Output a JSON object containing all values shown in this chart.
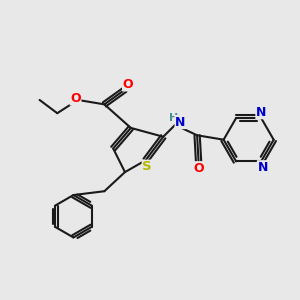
{
  "bg_color": "#e8e8e8",
  "bond_color": "#1a1a1a",
  "bond_width": 1.5,
  "atom_colors": {
    "S": "#b8b800",
    "O": "#ff0000",
    "N": "#0000cc",
    "C": "#1a1a1a",
    "H": "#4a9090"
  },
  "font_size_atom": 9,
  "dbo": 0.08
}
